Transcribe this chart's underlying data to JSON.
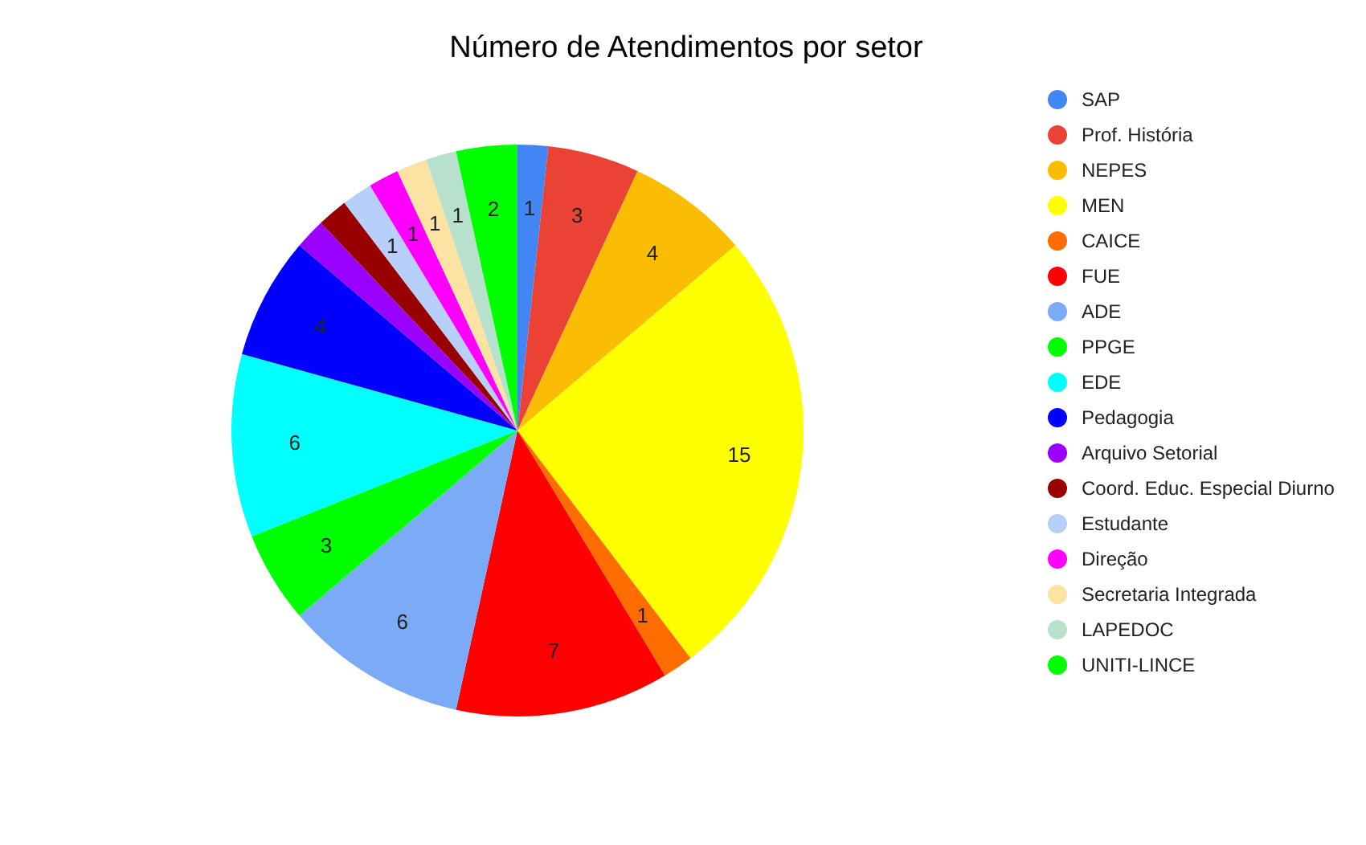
{
  "chart_data": {
    "type": "pie",
    "title": "Número de Atendimentos por setor",
    "categories": [
      "SAP",
      "Prof. História",
      "NEPES",
      "MEN",
      "CAICE",
      "FUE",
      "ADE",
      "PPGE",
      "EDE",
      "Pedagogia",
      "Arquivo Setorial",
      "Coord. Educ. Especial Diurno",
      "Estudante",
      "Direção",
      "Secretaria Integrada",
      "LAPEDOC",
      "UNITI-LINCE"
    ],
    "values": [
      1,
      3,
      4,
      15,
      1,
      7,
      6,
      3,
      6,
      4,
      1,
      1,
      1,
      1,
      1,
      1,
      2
    ],
    "colors": [
      "#4285f4",
      "#ea4335",
      "#fbbc04",
      "#ffff00",
      "#ff6d01",
      "#ff0000",
      "#7baaf7",
      "#00ff00",
      "#00ffff",
      "#0000ff",
      "#9900ff",
      "#980000",
      "#b7cff9",
      "#ff00ff",
      "#fde3a3",
      "#b7e1cd",
      "#00ff00"
    ],
    "value_labels": [
      "1",
      "3",
      "4",
      "15",
      "1",
      "7",
      "6",
      "3",
      "6",
      "4",
      null,
      null,
      "1",
      "1",
      "1",
      "1",
      "2"
    ],
    "legend": "right"
  }
}
